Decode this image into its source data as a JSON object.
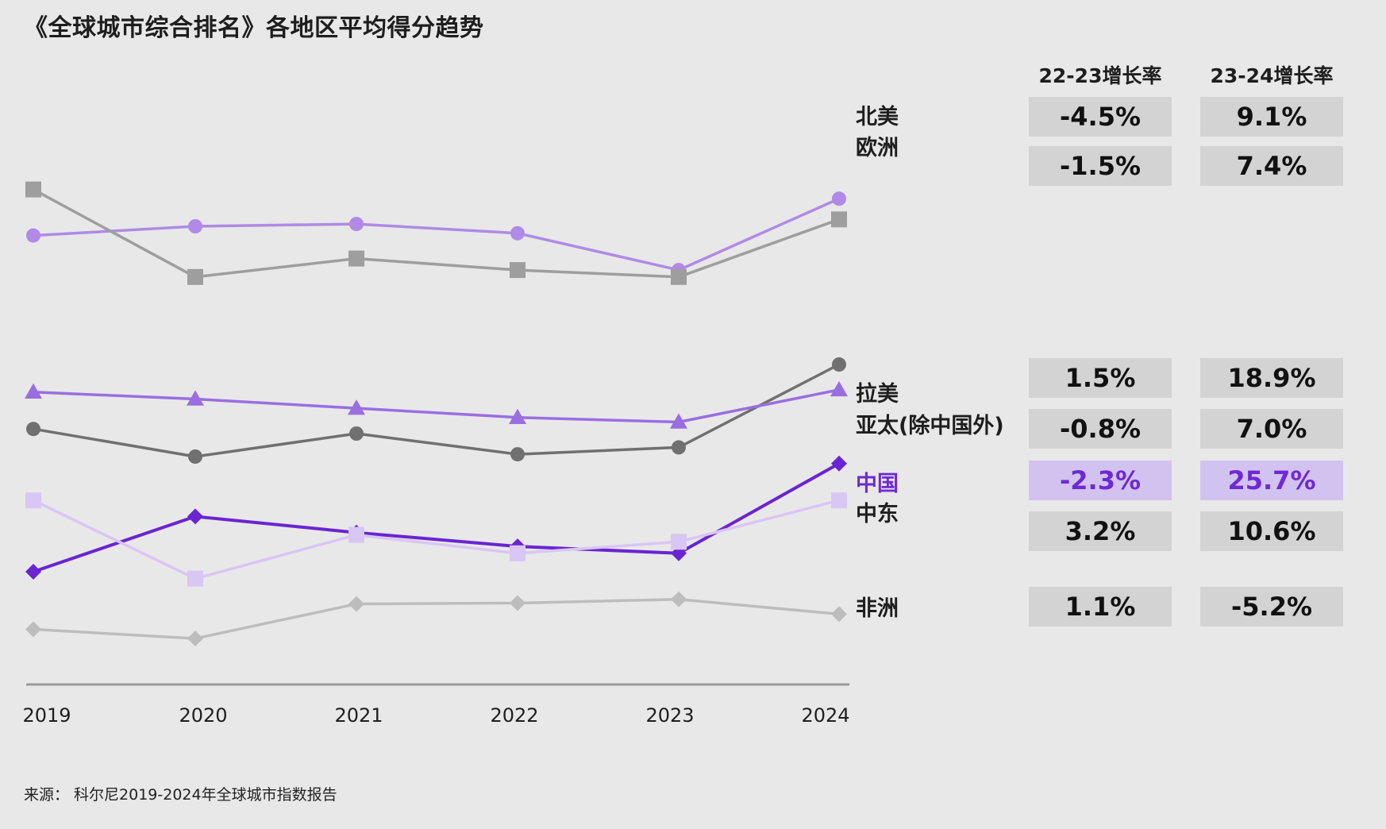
{
  "title": "《全球城市综合排名》各地区平均得分趋势",
  "source": "来源： 科尔尼2019-2024年全球城市指数报告",
  "table": {
    "headers": [
      "22-23增长率",
      "23-24增长率"
    ],
    "rows": [
      {
        "region": "北美",
        "g2223": "-4.5%",
        "g2324": "9.1%",
        "highlight": false
      },
      {
        "region": "欧洲",
        "g2223": "-1.5%",
        "g2324": "7.4%",
        "highlight": false
      },
      {
        "region": "拉美",
        "g2223": "1.5%",
        "g2324": "18.9%",
        "highlight": false
      },
      {
        "region": "亚太(除中国外)",
        "g2223": "-0.8%",
        "g2324": "7.0%",
        "highlight": false
      },
      {
        "region": "中国",
        "g2223": "-2.3%",
        "g2324": "25.7%",
        "highlight": true
      },
      {
        "region": "中东",
        "g2223": "3.2%",
        "g2324": "10.6%",
        "highlight": false
      },
      {
        "region": "非洲",
        "g2223": "1.1%",
        "g2324": "-5.2%",
        "highlight": false
      }
    ]
  },
  "chart_data": {
    "type": "line",
    "x": [
      "2019",
      "2020",
      "2021",
      "2022",
      "2023",
      "2024"
    ],
    "grid": false,
    "legend": "end-of-line labels",
    "series": [
      {
        "name": "北美",
        "values": [
          0.73,
          0.75,
          0.755,
          0.735,
          0.655,
          0.81
        ],
        "color": "#b08ae6",
        "marker": "circle",
        "label_color": "#1e1e1e"
      },
      {
        "name": "欧洲",
        "values": [
          0.83,
          0.64,
          0.68,
          0.655,
          0.64,
          0.765
        ],
        "color": "#9e9e9e",
        "marker": "square",
        "label_color": "#1e1e1e"
      },
      {
        "name": "拉美",
        "values": [
          0.31,
          0.25,
          0.3,
          0.255,
          0.27,
          0.45
        ],
        "color": "#707070",
        "marker": "circle",
        "label_color": "#1e1e1e"
      },
      {
        "name": "亚太(除中国外)",
        "values": [
          0.39,
          0.375,
          0.355,
          0.335,
          0.325,
          0.395
        ],
        "color": "#9a6ee0",
        "marker": "triangle",
        "label_color": "#1e1e1e"
      },
      {
        "name": "中国",
        "values": [
          0.0,
          0.12,
          0.085,
          0.055,
          0.04,
          0.235
        ],
        "color": "#6a24d2",
        "marker": "diamond",
        "label_color": "#6e29d4"
      },
      {
        "name": "中东",
        "values": [
          0.155,
          -0.015,
          0.08,
          0.04,
          0.065,
          0.155
        ],
        "color": "#d8c6f4",
        "marker": "square",
        "label_color": "#1e1e1e"
      },
      {
        "name": "非洲",
        "values": [
          -0.125,
          -0.145,
          -0.07,
          -0.068,
          -0.06,
          -0.092
        ],
        "color": "#bdbdbd",
        "marker": "diamond",
        "label_color": "#1e1e1e"
      }
    ]
  }
}
